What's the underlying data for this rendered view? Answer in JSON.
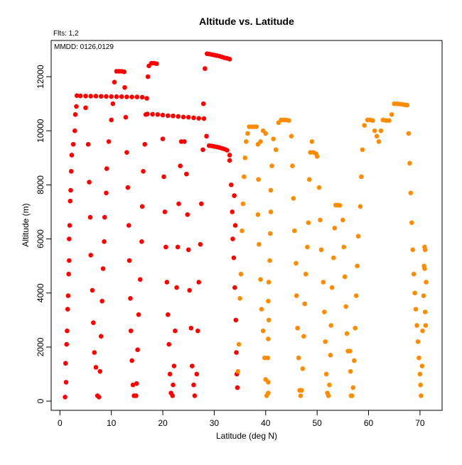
{
  "chart_data": {
    "type": "scatter",
    "title": "Altitude vs. Latitude",
    "annotations": [
      "Flts: 1,2",
      "MMDD: 0126,0129"
    ],
    "x_label": "Latitude (deg N)",
    "y_label": "Altitude (m)",
    "xlim": [
      -1.7,
      74.3
    ],
    "ylim": [
      -340,
      13340
    ],
    "xticks": [
      0,
      10,
      20,
      30,
      40,
      50,
      60,
      70
    ],
    "yticks": [
      0,
      2000,
      4000,
      6000,
      8000,
      10000,
      12000
    ],
    "series": [
      {
        "color": "#ff0000",
        "x": [
          1,
          1.2,
          1.1,
          1.3,
          1.4,
          1.5,
          1.6,
          1.7,
          1.8,
          1.8,
          1.9,
          2,
          2.1,
          2.2,
          2.3,
          2.6,
          2.9,
          3,
          3.2,
          3.3,
          4,
          5,
          6,
          7,
          8,
          9,
          10,
          11,
          12,
          13,
          14,
          15,
          16,
          5,
          5.5,
          5.7,
          5.9,
          6,
          6.3,
          6.5,
          6.7,
          7,
          7.3,
          7.6,
          7.8,
          8,
          8.2,
          8.4,
          8.6,
          8.7,
          9,
          9.1,
          9.5,
          10,
          10.3,
          10.6,
          11,
          11.5,
          12,
          12.5,
          12.6,
          12.8,
          13,
          13.2,
          13.4,
          13.5,
          13.7,
          13.8,
          14,
          14.2,
          14.4,
          14.8,
          14.9,
          15.1,
          15.3,
          15.6,
          15.9,
          16,
          16.2,
          16.5,
          16.7,
          16.9,
          17.1,
          17.3,
          17.8,
          18.3,
          18.8,
          17,
          18,
          19,
          20,
          21,
          22,
          23,
          24,
          25,
          26,
          27,
          28,
          20,
          20.2,
          20.4,
          20.6,
          20.8,
          21,
          21.2,
          21.4,
          21.6,
          21.9,
          22,
          22.2,
          22.4,
          22.7,
          22.9,
          23.1,
          23.4,
          23.6,
          24.2,
          24.6,
          24.8,
          25,
          25.2,
          25.5,
          25.7,
          26,
          26.2,
          26.6,
          26.8,
          27,
          27.3,
          27.5,
          27.8,
          27.9,
          28.2,
          28.6,
          29,
          29.5,
          30,
          30.5,
          31,
          31.5,
          32,
          32.5,
          33,
          28.5,
          29,
          29.5,
          30,
          30.5,
          31,
          31.5,
          32,
          32.5,
          33,
          33,
          33.3,
          33.5,
          33.6,
          33.8,
          34,
          34.2,
          34.3,
          34.4,
          34.5,
          33.9,
          34.1
        ],
        "values": [
          150,
          700,
          1400,
          2100,
          2600,
          3400,
          3900,
          4700,
          5200,
          6000,
          6500,
          7400,
          7800,
          8500,
          9100,
          9500,
          10000,
          10600,
          10900,
          11300,
          11290,
          11285,
          11280,
          11280,
          11275,
          11270,
          11265,
          11260,
          11260,
          11255,
          11250,
          11250,
          11240,
          10850,
          9500,
          8100,
          6800,
          5400,
          4100,
          2900,
          1800,
          1250,
          200,
          150,
          1100,
          2400,
          3700,
          4900,
          5900,
          6800,
          7700,
          8600,
          9600,
          10400,
          11000,
          11800,
          12200,
          12200,
          12200,
          12180,
          11600,
          10500,
          9200,
          7900,
          6500,
          5200,
          3800,
          2600,
          1500,
          600,
          200,
          200,
          650,
          1900,
          3200,
          4500,
          5900,
          7200,
          8500,
          9500,
          10600,
          11200,
          12000,
          12400,
          12500,
          12500,
          12480,
          10620,
          10610,
          10600,
          10580,
          10560,
          10550,
          10530,
          10510,
          10500,
          10480,
          10460,
          10450,
          9700,
          8300,
          7000,
          5700,
          4400,
          3200,
          2100,
          1000,
          300,
          200,
          600,
          1300,
          2600,
          4200,
          5700,
          7300,
          8700,
          9600,
          9600,
          8400,
          6900,
          5600,
          4100,
          2700,
          1300,
          600,
          200,
          1000,
          2600,
          4400,
          5800,
          7300,
          9300,
          11000,
          12300,
          12850,
          12840,
          12820,
          12800,
          12780,
          12760,
          12730,
          12700,
          12680,
          12650,
          9800,
          9450,
          9440,
          9420,
          9400,
          9380,
          9350,
          9320,
          9280,
          9100,
          8900,
          8000,
          7000,
          6000,
          5300,
          4200,
          3000,
          1800,
          1000,
          500,
          7600,
          6500
        ]
      },
      {
        "color": "#ff8c00",
        "x": [
          34.6,
          34.8,
          35,
          35.2,
          35.4,
          35.6,
          35.8,
          36,
          36.2,
          36.5,
          36.8,
          37.3,
          37.8,
          38.2,
          38.5,
          38.6,
          38.5,
          38.7,
          39,
          39.2,
          39.5,
          39.8,
          40,
          40.2,
          40.5,
          40.5,
          40.4,
          40.5,
          40.6,
          40.5,
          40.6,
          40.8,
          40.9,
          41,
          41,
          41.2,
          41.5,
          40,
          39.5,
          39,
          42,
          42.5,
          43,
          43.5,
          44,
          44.5,
          45,
          45.2,
          45.4,
          45.6,
          45.9,
          46,
          46.2,
          46.4,
          46.6,
          46.8,
          47,
          47.2,
          47.4,
          47.6,
          47.8,
          48.1,
          48.3,
          48.5,
          48.7,
          49,
          49.3,
          49.8,
          50,
          50.4,
          50.6,
          50.8,
          51.2,
          51.4,
          51.6,
          51.8,
          52,
          52.2,
          52.4,
          52.6,
          52.7,
          52.9,
          53.2,
          53.4,
          53.6,
          54,
          54.4,
          55,
          55.2,
          55.4,
          55.6,
          55.8,
          56,
          56.4,
          56.5,
          56.6,
          56.8,
          57,
          57.2,
          57.4,
          57.6,
          57.8,
          58,
          58.4,
          58.6,
          58.8,
          59.2,
          59.8,
          60.3,
          60.8,
          61.2,
          61.6,
          62,
          62.4,
          62.8,
          63.4,
          64,
          64.5,
          65,
          65.5,
          66,
          66.5,
          67,
          67.5,
          67.8,
          68,
          68.2,
          68.4,
          68.6,
          68.8,
          69,
          69.2,
          69.4,
          69.6,
          69.8,
          70,
          70.1,
          70.2,
          70.4,
          70.5,
          70.7,
          70.8,
          70.9,
          71,
          70.9,
          71,
          71.1,
          71.2
        ],
        "values": [
          1100,
          2100,
          3800,
          4700,
          6300,
          7300,
          8300,
          9000,
          9600,
          9900,
          10150,
          10150,
          10150,
          10150,
          9500,
          8200,
          6900,
          5800,
          4500,
          3400,
          2600,
          1600,
          800,
          200,
          300,
          700,
          1600,
          2300,
          3000,
          3700,
          4400,
          5200,
          6200,
          7000,
          7800,
          8700,
          9700,
          9900,
          10000,
          9600,
          9300,
          10300,
          10400,
          10400,
          10400,
          10380,
          9800,
          8700,
          7500,
          6300,
          5100,
          3900,
          2700,
          1600,
          400,
          200,
          400,
          1200,
          2400,
          3600,
          4700,
          5700,
          6600,
          8200,
          9200,
          9600,
          9200,
          9150,
          9050,
          7900,
          6700,
          5600,
          4400,
          3300,
          2200,
          1000,
          300,
          200,
          600,
          1700,
          2800,
          4200,
          5300,
          6400,
          7250,
          7250,
          7240,
          6700,
          5700,
          4600,
          3500,
          2500,
          1850,
          1850,
          1100,
          200,
          200,
          500,
          1500,
          2700,
          3900,
          5000,
          6100,
          7200,
          8300,
          9300,
          10200,
          10400,
          10400,
          10380,
          10000,
          9800,
          9600,
          10000,
          10400,
          10380,
          10380,
          10600,
          11000,
          11000,
          10990,
          10980,
          10960,
          10950,
          9900,
          8800,
          7700,
          6600,
          5600,
          4700,
          4000,
          3400,
          2800,
          2200,
          1600,
          1000,
          600,
          200,
          1300,
          2600,
          3900,
          5000,
          5700,
          5600,
          4900,
          3300,
          2800,
          4400
        ]
      }
    ]
  }
}
